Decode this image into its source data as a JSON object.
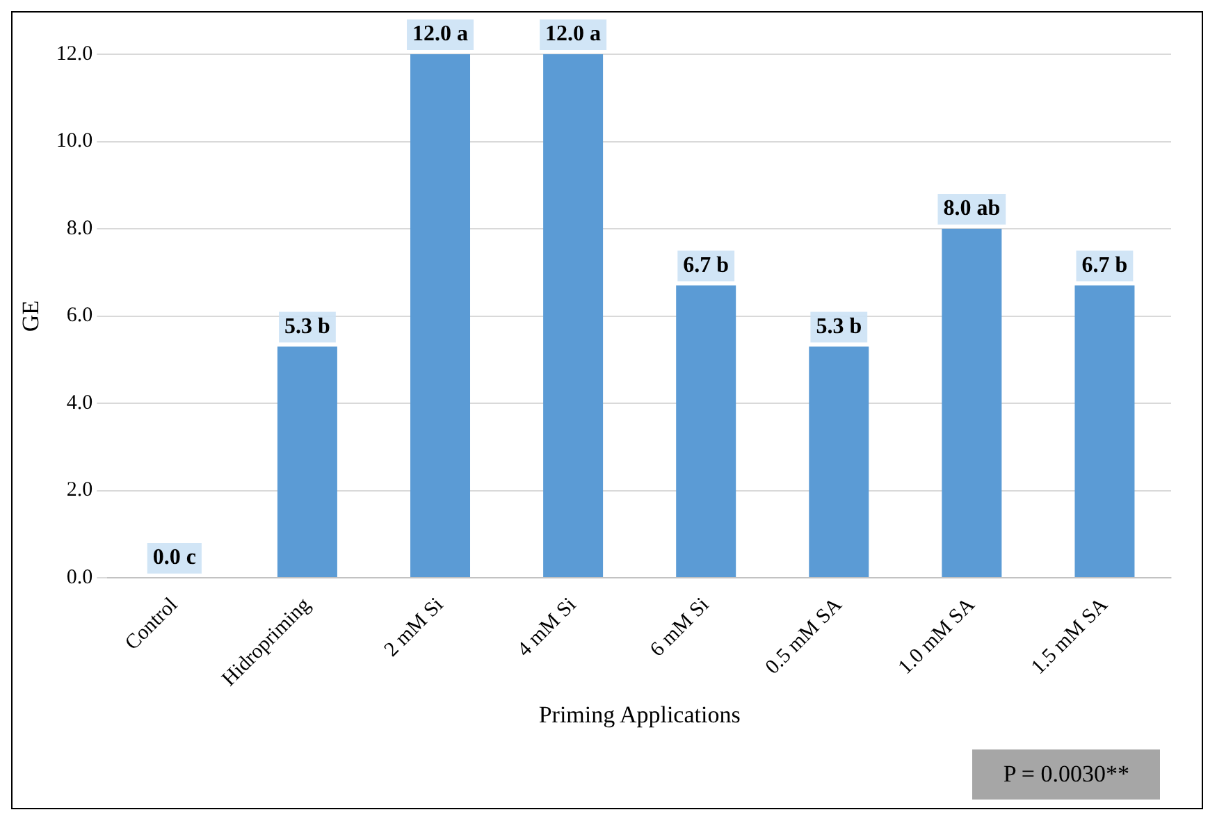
{
  "chart_data": {
    "type": "bar",
    "xlabel": "Priming Applications",
    "ylabel": "GE",
    "categories": [
      "Control",
      "Hidropriming",
      "2 mM Si",
      "4 mM Si",
      "6 mM Si",
      "0.5 mM SA",
      "1.0 mM SA",
      "1.5 mM SA"
    ],
    "values": [
      0,
      5.3,
      12.0,
      12.0,
      6.7,
      5.3,
      8.0,
      6.7
    ],
    "value_labels": [
      "0.0 c",
      "5.3 b",
      "12.0 a",
      "12.0 a",
      "6.7 b",
      "5.3 b",
      "8.0 ab",
      "6.7 b"
    ],
    "color": "#5b9bd5",
    "ylim": [
      0,
      12
    ],
    "yticks": [
      {
        "value": 0,
        "label": "0.0"
      },
      {
        "value": 2,
        "label": "2.0"
      },
      {
        "value": 4,
        "label": "4.0"
      },
      {
        "value": 6,
        "label": "6.0"
      },
      {
        "value": 8,
        "label": "8.0"
      },
      {
        "value": 10,
        "label": "10.0"
      },
      {
        "value": 12,
        "label": "12.0"
      }
    ],
    "grid": "y",
    "annotations": [
      "P = 0.0030**"
    ]
  }
}
